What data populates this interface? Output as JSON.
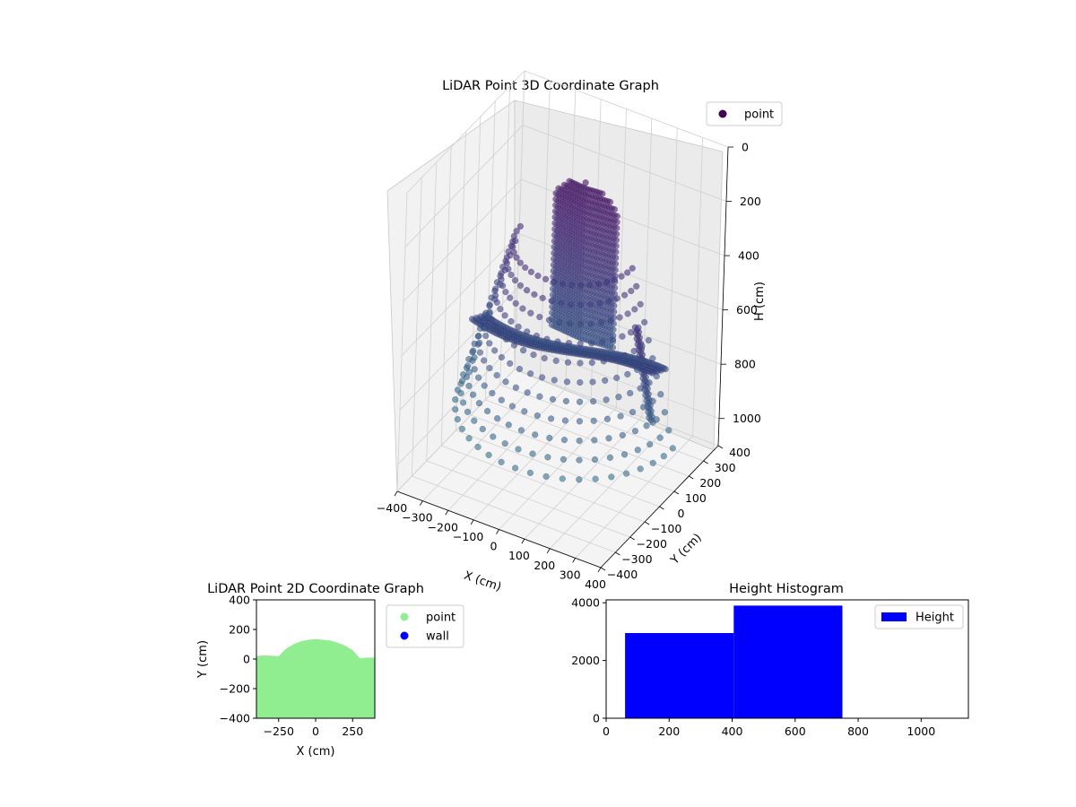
{
  "chart_data": [
    {
      "type": "scatter",
      "title": "LiDAR Point 3D Coordinate Graph",
      "xlabel": "X (cm)",
      "ylabel": "Y (cm)",
      "zlabel": "H (cm)",
      "xlim": [
        -400,
        400
      ],
      "ylim": [
        -400,
        400
      ],
      "zlim": [
        0,
        1100
      ],
      "z_inverted": true,
      "x_ticks": [
        -400,
        -300,
        -200,
        -100,
        0,
        100,
        200,
        300,
        400
      ],
      "y_ticks": [
        -400,
        -300,
        -200,
        -100,
        0,
        100,
        200,
        300,
        400
      ],
      "z_ticks": [
        0,
        200,
        400,
        600,
        800,
        1000
      ],
      "x_tick_labels": [
        "−400",
        "−300",
        "−200",
        "−100",
        "0",
        "100",
        "200",
        "300",
        "400"
      ],
      "y_tick_labels": [
        "−400",
        "−300",
        "−200",
        "−100",
        "0",
        "100",
        "200",
        "300",
        "400"
      ],
      "z_tick_labels": [
        "0",
        "200",
        "400",
        "600",
        "800",
        "1000"
      ],
      "series": [
        {
          "name": "point",
          "color": "#440154"
        }
      ],
      "legend": "top-right",
      "grid": true,
      "colormap": "viridis"
    },
    {
      "type": "scatter",
      "title": "LiDAR Point 2D Coordinate Graph",
      "xlabel": "X (cm)",
      "ylabel": "Y (cm)",
      "xlim": [
        -400,
        400
      ],
      "ylim": [
        -400,
        400
      ],
      "x_ticks": [
        -250,
        0,
        250
      ],
      "y_ticks": [
        -400,
        -200,
        0,
        200,
        400
      ],
      "x_tick_labels": [
        "−250",
        "0",
        "250"
      ],
      "y_tick_labels": [
        "−400",
        "−200",
        "0",
        "200",
        "400"
      ],
      "series": [
        {
          "name": "point",
          "color": "#90ee90",
          "outline_x": [
            -400,
            -350,
            -250,
            -200,
            -150,
            -100,
            -50,
            0,
            50,
            100,
            150,
            200,
            250,
            300,
            350,
            400
          ],
          "outline_y": [
            20,
            25,
            20,
            70,
            100,
            120,
            130,
            135,
            130,
            125,
            110,
            90,
            60,
            5,
            10,
            10
          ]
        },
        {
          "name": "wall",
          "color": "#0000ff",
          "points": []
        }
      ],
      "legend": "outside-right",
      "grid": false
    },
    {
      "type": "bar",
      "title": "Height Histogram",
      "xlim": [
        0,
        1150
      ],
      "ylim": [
        0,
        4100
      ],
      "x_ticks": [
        0,
        200,
        400,
        600,
        800,
        1000
      ],
      "y_ticks": [
        0,
        2000,
        4000
      ],
      "x_tick_labels": [
        "0",
        "200",
        "400",
        "600",
        "800",
        "1000"
      ],
      "y_tick_labels": [
        "0",
        "2000",
        "4000"
      ],
      "bins": [
        {
          "start": 60,
          "end": 405,
          "count": 2950
        },
        {
          "start": 405,
          "end": 750,
          "count": 3900
        },
        {
          "start": 750,
          "end": 1095,
          "count": 0
        }
      ],
      "series": [
        {
          "name": "Height",
          "color": "#0000ff"
        }
      ],
      "legend": "top-right",
      "grid": false
    }
  ]
}
